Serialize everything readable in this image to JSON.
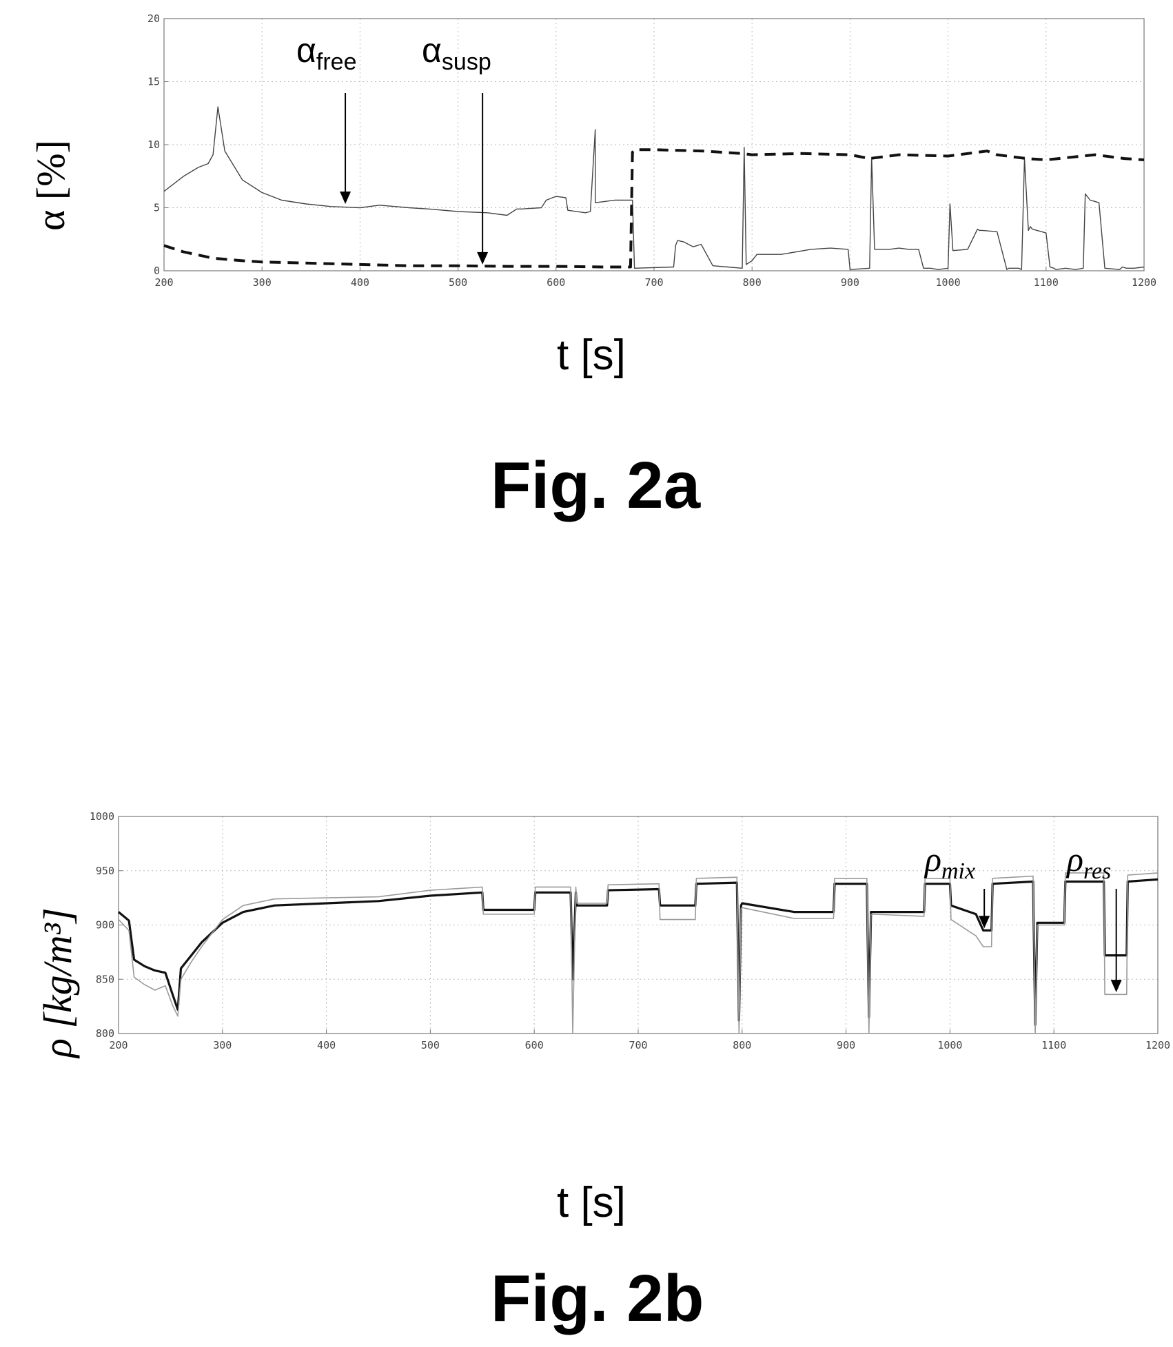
{
  "chart_data": [
    {
      "type": "line",
      "figure_label": "Fig. 2a",
      "xlabel": "t [s]",
      "ylabel": "α [%]",
      "xlim": [
        200,
        1200
      ],
      "ylim": [
        0,
        20
      ],
      "x_ticks": [
        "200",
        "300",
        "400",
        "500",
        "600",
        "700",
        "800",
        "900",
        "1000",
        "1100",
        "1200"
      ],
      "y_ticks": [
        "0",
        "5",
        "10",
        "15",
        "20"
      ],
      "grid": true,
      "annotations": [
        {
          "symbol": "α",
          "subscript": "free",
          "points_to": [
            385,
            5.3
          ]
        },
        {
          "symbol": "α",
          "subscript": "susp",
          "points_to": [
            525,
            0.5
          ]
        }
      ],
      "series": [
        {
          "name": "free",
          "style": "solid-thin",
          "color": "#444444",
          "x": [
            200,
            220,
            235,
            245,
            250,
            255,
            262,
            280,
            300,
            320,
            345,
            370,
            400,
            420,
            450,
            470,
            500,
            530,
            550,
            560,
            565,
            585,
            590,
            600,
            610,
            612,
            630,
            635,
            640,
            640,
            660,
            678,
            680,
            720,
            722,
            724,
            730,
            740,
            748,
            760,
            775,
            790,
            792,
            794,
            800,
            805,
            810,
            830,
            860,
            880,
            898,
            900,
            920,
            922,
            925,
            940,
            950,
            960,
            970,
            975,
            982,
            990,
            1000,
            1002,
            1005,
            1020,
            1030,
            1032,
            1035,
            1050,
            1060,
            1062,
            1072,
            1075,
            1078,
            1082,
            1084,
            1086,
            1100,
            1104,
            1108,
            1110,
            1120,
            1130,
            1138,
            1140,
            1145,
            1150,
            1154,
            1160,
            1175,
            1178,
            1182,
            1190,
            1200
          ],
          "y": [
            6.3,
            7.5,
            8.2,
            8.5,
            9.2,
            13.0,
            9.5,
            7.2,
            6.2,
            5.6,
            5.3,
            5.1,
            5.0,
            5.2,
            5.0,
            4.9,
            4.7,
            4.6,
            4.4,
            4.9,
            4.9,
            5.0,
            5.6,
            5.9,
            5.8,
            4.8,
            4.6,
            4.7,
            11.2,
            5.4,
            5.6,
            5.6,
            0.2,
            0.3,
            2.0,
            2.4,
            2.3,
            1.9,
            2.1,
            0.4,
            0.3,
            0.2,
            9.8,
            0.5,
            0.8,
            1.3,
            1.3,
            1.3,
            1.7,
            1.8,
            1.7,
            0.1,
            0.2,
            9.0,
            1.7,
            1.7,
            1.8,
            1.7,
            1.7,
            0.2,
            0.2,
            0.1,
            0.2,
            5.3,
            1.6,
            1.7,
            3.3,
            3.2,
            3.2,
            3.1,
            0.1,
            0.2,
            0.2,
            0.1,
            8.9,
            3.2,
            3.5,
            3.3,
            3.0,
            0.3,
            0.2,
            0.1,
            0.2,
            0.1,
            0.2,
            6.1,
            5.6,
            5.5,
            5.4,
            0.2,
            0.1,
            0.3,
            0.2,
            0.2,
            0.3
          ]
        },
        {
          "name": "susp",
          "style": "dashed-thick",
          "color": "#111111",
          "x": [
            200,
            220,
            250,
            280,
            300,
            350,
            400,
            450,
            500,
            550,
            600,
            650,
            676,
            678,
            680,
            700,
            750,
            790,
            800,
            850,
            900,
            920,
            950,
            1000,
            1040,
            1050,
            1080,
            1100,
            1150,
            1180,
            1200
          ],
          "y": [
            2.0,
            1.5,
            1.0,
            0.8,
            0.7,
            0.6,
            0.5,
            0.4,
            0.4,
            0.35,
            0.35,
            0.3,
            0.3,
            9.4,
            9.6,
            9.6,
            9.5,
            9.3,
            9.2,
            9.3,
            9.2,
            8.9,
            9.2,
            9.1,
            9.5,
            9.2,
            8.9,
            8.8,
            9.2,
            8.9,
            8.8
          ]
        }
      ]
    },
    {
      "type": "line",
      "figure_label": "Fig. 2b",
      "xlabel": "t [s]",
      "ylabel": "ρ [kg/m³]",
      "xlim": [
        200,
        1200
      ],
      "ylim": [
        800,
        1000
      ],
      "x_ticks": [
        "200",
        "300",
        "400",
        "500",
        "600",
        "700",
        "800",
        "900",
        "1000",
        "1100",
        "1200"
      ],
      "y_ticks": [
        "800",
        "850",
        "900",
        "950",
        "1000"
      ],
      "grid": true,
      "annotations": [
        {
          "symbol": "ρ",
          "subscript": "mix",
          "points_to": [
            1033,
            897
          ]
        },
        {
          "symbol": "ρ",
          "subscript": "res",
          "points_to": [
            1160,
            838
          ]
        }
      ],
      "series": [
        {
          "name": "mix",
          "style": "solid-thick",
          "color": "#111111",
          "x": [
            200,
            210,
            215,
            225,
            235,
            245,
            252,
            257,
            260,
            270,
            280,
            300,
            320,
            350,
            400,
            450,
            500,
            550,
            551,
            600,
            601,
            635,
            637,
            640,
            641,
            670,
            671,
            720,
            721,
            755,
            756,
            795,
            797,
            799,
            800,
            850,
            888,
            889,
            920,
            922,
            924,
            925,
            975,
            976,
            1000,
            1001,
            1025,
            1032,
            1040,
            1041,
            1080,
            1082,
            1084,
            1085,
            1110,
            1111,
            1148,
            1149,
            1170,
            1171,
            1200
          ],
          "y": [
            912,
            904,
            868,
            862,
            858,
            856,
            836,
            822,
            860,
            872,
            884,
            902,
            912,
            918,
            920,
            922,
            927,
            930,
            914,
            914,
            930,
            930,
            850,
            930,
            918,
            918,
            932,
            933,
            918,
            918,
            938,
            939,
            812,
            918,
            920,
            912,
            912,
            938,
            938,
            815,
            912,
            912,
            912,
            938,
            938,
            918,
            910,
            895,
            895,
            938,
            940,
            808,
            902,
            902,
            902,
            940,
            940,
            872,
            872,
            940,
            942
          ]
        },
        {
          "name": "res",
          "style": "solid-thin",
          "color": "#9a9a9a",
          "x": [
            200,
            210,
            215,
            225,
            235,
            245,
            252,
            257,
            260,
            270,
            280,
            300,
            320,
            350,
            400,
            450,
            500,
            550,
            551,
            600,
            601,
            635,
            637,
            640,
            641,
            670,
            671,
            720,
            721,
            755,
            756,
            795,
            797,
            799,
            800,
            850,
            888,
            889,
            920,
            922,
            924,
            925,
            975,
            976,
            1000,
            1001,
            1025,
            1032,
            1040,
            1041,
            1080,
            1082,
            1084,
            1085,
            1110,
            1111,
            1148,
            1149,
            1170,
            1171,
            1200
          ],
          "y": [
            905,
            895,
            852,
            845,
            840,
            844,
            826,
            816,
            850,
            866,
            880,
            905,
            918,
            924,
            925,
            926,
            932,
            935,
            910,
            910,
            935,
            935,
            800,
            935,
            920,
            920,
            937,
            938,
            905,
            905,
            943,
            944,
            800,
            915,
            916,
            906,
            906,
            943,
            943,
            800,
            910,
            910,
            908,
            943,
            943,
            905,
            890,
            880,
            880,
            943,
            945,
            800,
            900,
            900,
            900,
            948,
            948,
            836,
            836,
            946,
            948
          ]
        }
      ]
    }
  ]
}
